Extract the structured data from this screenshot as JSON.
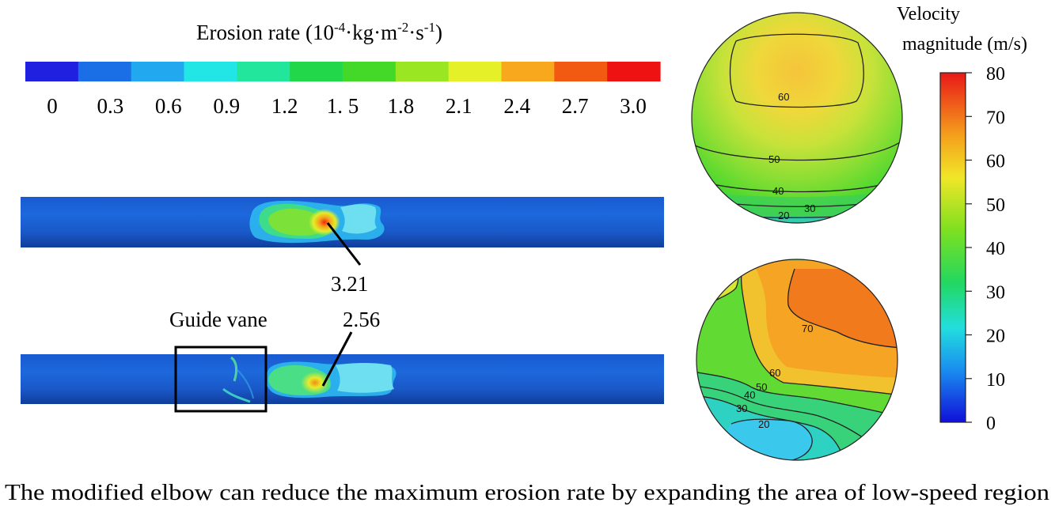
{
  "erosion_legend": {
    "title_prefix": "Erosion rate (10",
    "title_exp1": "-4",
    "title_mid1": "·kg·m",
    "title_exp2": "-2",
    "title_mid2": "·s",
    "title_exp3": "-1",
    "title_suffix": ")",
    "ticks": [
      "0",
      "0.3",
      "0.6",
      "0.9",
      "1.2",
      "1. 5",
      "1.8",
      "2.1",
      "2.4",
      "2.7",
      "3.0"
    ],
    "colors": [
      "#2020e0",
      "#1a6ee6",
      "#22a8ee",
      "#22e6e6",
      "#22e69c",
      "#22d84a",
      "#44d828",
      "#9ae622",
      "#e6f028",
      "#f7a81c",
      "#f25a12",
      "#ee1212"
    ]
  },
  "pipes": {
    "original": {
      "max_value": "3.21"
    },
    "modified": {
      "max_value": "2.56",
      "box_label": "Guide vane"
    }
  },
  "velocity_legend": {
    "title_line1": "Velocity",
    "title_line2": "magnitude (m/s)",
    "ticks": [
      "80",
      "70",
      "60",
      "50",
      "40",
      "30",
      "20",
      "10",
      "0"
    ]
  },
  "cross_sections": {
    "top_labels": [
      "60",
      "50",
      "40",
      "30",
      "20"
    ],
    "bottom_labels": [
      "70",
      "60",
      "50",
      "40",
      "30",
      "20"
    ]
  },
  "caption": "The modified elbow can reduce the maximum erosion rate by expanding the area of low-speed region"
}
